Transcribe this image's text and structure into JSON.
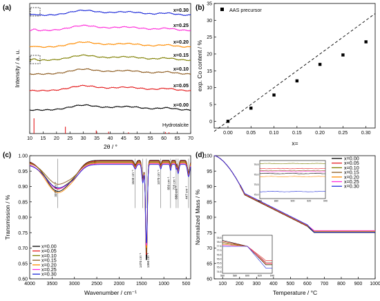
{
  "panels": [
    "(a)",
    "(b)",
    "(c)",
    "(d)"
  ],
  "palette": [
    "#000000",
    "#e41a1c",
    "#7f7f00",
    "#8c5a1e",
    "#ff8c00",
    "#ff2bd9",
    "#1e2bd9"
  ],
  "chart_data": [
    {
      "id": "a",
      "type": "line",
      "title": "",
      "xlabel": "2θ / °",
      "ylabel": "Intensity / a. u.",
      "xlim": [
        10,
        70
      ],
      "xticks": [
        "10",
        "15",
        "20",
        "25",
        "30",
        "35",
        "40",
        "45",
        "50",
        "55",
        "60",
        "65",
        "70"
      ],
      "series": [
        {
          "name": "x=0.00",
          "color": "#000000"
        },
        {
          "name": "x=0.05",
          "color": "#e41a1c"
        },
        {
          "name": "x=0.10",
          "color": "#8c5a1e"
        },
        {
          "name": "x=0.15",
          "color": "#7f7f00"
        },
        {
          "name": "x=0.20",
          "color": "#ff8c00"
        },
        {
          "name": "x=0.25",
          "color": "#ff2bd9"
        },
        {
          "name": "x=0.30",
          "color": "#1e2bd9"
        }
      ],
      "reference": {
        "name": "Hydrotalcite",
        "color": "#e41a1c",
        "x": [
          11.6,
          23.3,
          34.8,
          39.4,
          46.8,
          60.6,
          61.9
        ],
        "intensity": [
          1.0,
          0.45,
          0.2,
          0.12,
          0.08,
          0.1,
          0.08
        ]
      }
    },
    {
      "id": "b",
      "type": "scatter",
      "title": "",
      "xlabel": "x=",
      "ylabel": "exp. Co content / %",
      "xlim": [
        -0.03,
        0.32
      ],
      "ylim": [
        -2,
        35
      ],
      "xticks": [
        "0.00",
        "0.05",
        "0.10",
        "0.15",
        "0.20",
        "0.25",
        "0.30"
      ],
      "yticks": [
        "0",
        "5",
        "10",
        "15",
        "20",
        "25",
        "30",
        "35"
      ],
      "legend": "top-left",
      "series": [
        {
          "name": "AAS precursor",
          "color": "#000000",
          "x": [
            0.0,
            0.05,
            0.1,
            0.15,
            0.2,
            0.25,
            0.3
          ],
          "y": [
            0.0,
            3.9,
            7.8,
            12.0,
            16.9,
            19.7,
            23.6
          ]
        }
      ],
      "reference_line": {
        "style": "dashed",
        "x": [
          0,
          0.3
        ],
        "y": [
          0,
          30
        ]
      }
    },
    {
      "id": "c",
      "type": "line",
      "title": "",
      "xlabel": "Wavenumber / cm⁻¹",
      "ylabel": "Transmission / %",
      "xlim": [
        4000,
        400
      ],
      "ylim": [
        0.6,
        1.0
      ],
      "xticks": [
        "4000",
        "3500",
        "3000",
        "2500",
        "2000",
        "1500",
        "1000",
        "500"
      ],
      "yticks": [
        "0.60",
        "0.65",
        "0.70",
        "0.75",
        "0.80",
        "0.85",
        "0.90",
        "0.95",
        "1.00"
      ],
      "legend": "bottom-left",
      "annotations": [
        "3375 cm⁻¹",
        "1640 cm⁻¹",
        "1470 cm⁻¹",
        "1390 cm⁻¹",
        "1070 cm⁻¹",
        "850 cm⁻¹",
        "725 cm⁻¹",
        "680 cm⁻¹",
        "447 cm⁻¹"
      ],
      "annotation_x": [
        3375,
        1640,
        1470,
        1390,
        1070,
        850,
        725,
        680,
        447
      ],
      "series": [
        {
          "name": "x=0.00",
          "color": "#000000"
        },
        {
          "name": "x=0.05",
          "color": "#e41a1c"
        },
        {
          "name": "x=0.10",
          "color": "#7f7f00"
        },
        {
          "name": "x=0.15",
          "color": "#8c5a1e"
        },
        {
          "name": "x=0.20",
          "color": "#ff8c00"
        },
        {
          "name": "x=0.25",
          "color": "#ff2bd9"
        },
        {
          "name": "x=0.30",
          "color": "#1e2bd9"
        }
      ]
    },
    {
      "id": "d",
      "type": "line",
      "title": "",
      "xlabel": "Temperature / °C",
      "ylabel": "Normalized Mass / %",
      "xlim": [
        50,
        1000
      ],
      "ylim": [
        60,
        100
      ],
      "xticks": [
        "100",
        "200",
        "300",
        "400",
        "500",
        "600",
        "700",
        "800",
        "900",
        "1000"
      ],
      "yticks": [
        "60",
        "65",
        "70",
        "75",
        "80",
        "85",
        "90",
        "95",
        "100"
      ],
      "legend": "top-right",
      "series": [
        {
          "name": "x=0.00",
          "color": "#000000",
          "final": 75.3
        },
        {
          "name": "x=0.05",
          "color": "#e41a1c",
          "final": 75.8
        },
        {
          "name": "x=0.10",
          "color": "#7f7f00",
          "final": 75.5
        },
        {
          "name": "x=0.15",
          "color": "#8c5a1e",
          "final": 75.6
        },
        {
          "name": "x=0.20",
          "color": "#ff8c00",
          "final": 75.4
        },
        {
          "name": "x=0.25",
          "color": "#ff2bd9",
          "final": 75.5
        },
        {
          "name": "x=0.30",
          "color": "#1e2bd9",
          "final": 74.9
        }
      ],
      "inset_top": {
        "xticks": [
          "860",
          "880",
          "900",
          "920",
          "940"
        ],
        "yticks": [
          "75.0",
          "75.5",
          "76.0",
          "76.5"
        ]
      },
      "inset_bottom": {
        "xticks": [
          "560",
          "580",
          "600",
          "620",
          "640"
        ],
        "yticks": [
          "74.5",
          "75.0",
          "75.5",
          "76.0",
          "76.5",
          "77.0",
          "77.5",
          "78.0",
          "78.5"
        ]
      }
    }
  ]
}
